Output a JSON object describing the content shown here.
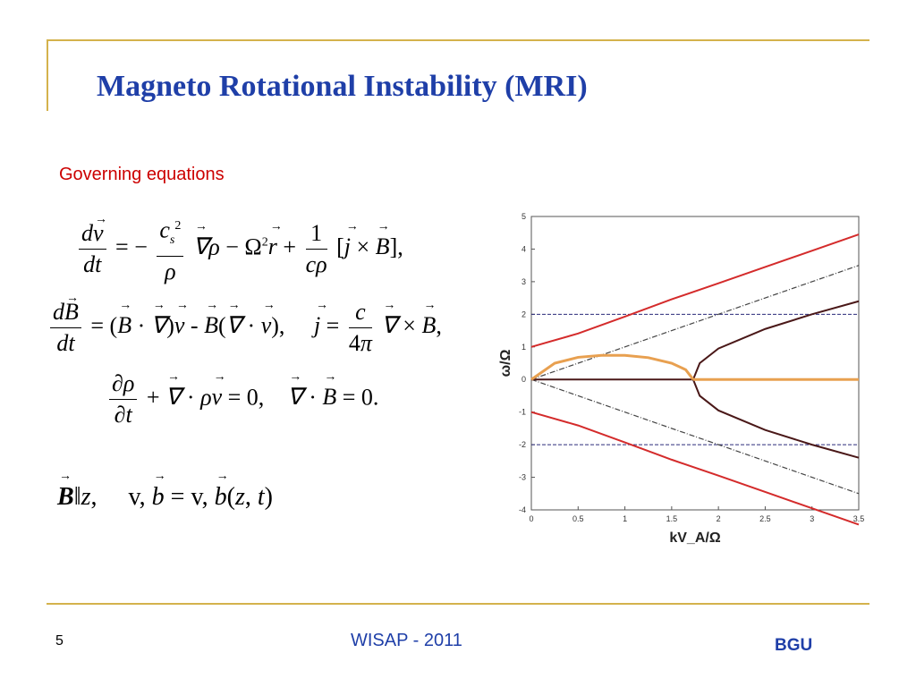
{
  "slide": {
    "title": "Magneto Rotational  Instability (MRI)",
    "subtitle": "Governing equations",
    "page_number": "5",
    "footer_center": "WISAP - 2011",
    "footer_logo": "BGU",
    "accent_color": "#1f3fa8",
    "rule_color": "#d4b24c"
  },
  "chart_data": {
    "type": "line",
    "xlabel": "kV_A/Ω",
    "ylabel": "ω/Ω",
    "xlim": [
      0,
      3.5
    ],
    "ylim": [
      -4,
      5
    ],
    "xticks": [
      "0",
      "0.5",
      "1",
      "1.5",
      "2",
      "2.5",
      "3",
      "3.5"
    ],
    "yticks": [
      "-4",
      "-3",
      "-2",
      "-1",
      "0",
      "1",
      "2",
      "3",
      "4",
      "5"
    ],
    "reference_lines": [
      {
        "style": "dashed",
        "color": "#2a2a7a",
        "y": 2
      },
      {
        "style": "dashed",
        "color": "#2a2a7a",
        "y": -2
      }
    ],
    "series": [
      {
        "color": "#d42b2b",
        "x": [
          0,
          0.5,
          1,
          1.5,
          2,
          2.5,
          3,
          3.5
        ],
        "y": [
          1.0,
          1.41,
          1.93,
          2.46,
          2.95,
          3.45,
          3.95,
          4.45
        ]
      },
      {
        "color": "#d42b2b",
        "x": [
          0,
          0.5,
          1,
          1.5,
          2,
          2.5,
          3,
          3.5
        ],
        "y": [
          -1.0,
          -1.41,
          -1.93,
          -2.46,
          -2.95,
          -3.45,
          -3.95,
          -4.45
        ]
      },
      {
        "color": "#444444",
        "style": "dashdot",
        "x": [
          0,
          3.5
        ],
        "y": [
          0,
          3.5
        ]
      },
      {
        "color": "#444444",
        "style": "dashdot",
        "x": [
          0,
          3.5
        ],
        "y": [
          0,
          -3.5
        ]
      },
      {
        "color": "#4a1818",
        "x": [
          0,
          1.73
        ],
        "y": [
          0,
          0
        ]
      },
      {
        "color": "#4a1818",
        "x": [
          1.73,
          1.8,
          2.0,
          2.5,
          3.0,
          3.5
        ],
        "y": [
          0,
          0.5,
          0.95,
          1.55,
          2.0,
          2.4
        ]
      },
      {
        "color": "#4a1818",
        "x": [
          1.73,
          1.8,
          2.0,
          2.5,
          3.0,
          3.5
        ],
        "y": [
          0,
          -0.5,
          -0.95,
          -1.55,
          -2.0,
          -2.4
        ]
      },
      {
        "color": "#e8a050",
        "x": [
          0,
          0.25,
          0.5,
          0.75,
          1.0,
          1.25,
          1.5,
          1.65,
          1.73
        ],
        "y": [
          0,
          0.5,
          0.68,
          0.74,
          0.74,
          0.67,
          0.5,
          0.3,
          0
        ]
      },
      {
        "color": "#e8a050",
        "x": [
          1.73,
          3.5
        ],
        "y": [
          0,
          0
        ]
      }
    ]
  }
}
